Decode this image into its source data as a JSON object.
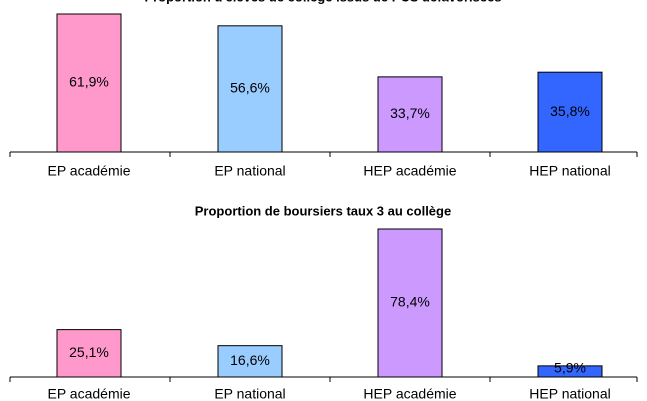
{
  "chart_data": [
    {
      "type": "bar",
      "title": "Proportion d'élèves de collège issus de PCS défavorisées",
      "categories": [
        "EP académie",
        "EP national",
        "HEP académie",
        "HEP national"
      ],
      "values": [
        61.9,
        56.6,
        33.7,
        35.8
      ],
      "value_labels": [
        "61,9%",
        "56,6%",
        "33,7%",
        "35,8%"
      ],
      "colors": [
        "#ff99cc",
        "#99ccff",
        "#cc99ff",
        "#3366ff"
      ]
    },
    {
      "type": "bar",
      "title": "Proportion de boursiers taux 3 au collège",
      "categories": [
        "EP académie",
        "EP national",
        "HEP académie",
        "HEP national"
      ],
      "values": [
        25.1,
        16.6,
        78.4,
        5.9
      ],
      "value_labels": [
        "25,1%",
        "16,6%",
        "78,4%",
        "5,9%"
      ],
      "colors": [
        "#ff99cc",
        "#99ccff",
        "#cc99ff",
        "#3366ff"
      ]
    }
  ]
}
